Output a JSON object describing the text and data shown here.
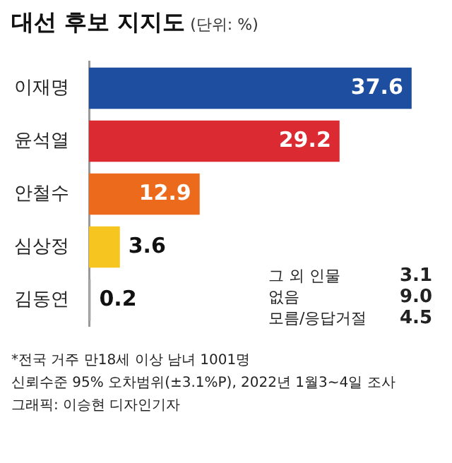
{
  "chart_data": {
    "type": "bar",
    "orientation": "horizontal",
    "title": "대선 후보 지지도",
    "subtitle": "(단위: %)",
    "categories": [
      "이재명",
      "윤석열",
      "안철수",
      "심상정",
      "김동연"
    ],
    "values": [
      37.6,
      29.2,
      12.9,
      3.6,
      0.2
    ],
    "colors": [
      "#1d4ea0",
      "#dc2a32",
      "#ec6a1c",
      "#f7c520",
      "#a8a8a8"
    ],
    "data_labels": true,
    "annotations": [
      "그 외 인물 3.1",
      "없음 9.0",
      "모름/응답거절 4.5",
      "*전국 거주 만18세 이상 남녀 1001명",
      "신뢰수준 95% 오차범위(±3.1%P), 2022년 1월3~4일 조사",
      "그래픽: 이승현 디자인기자"
    ]
  }
}
